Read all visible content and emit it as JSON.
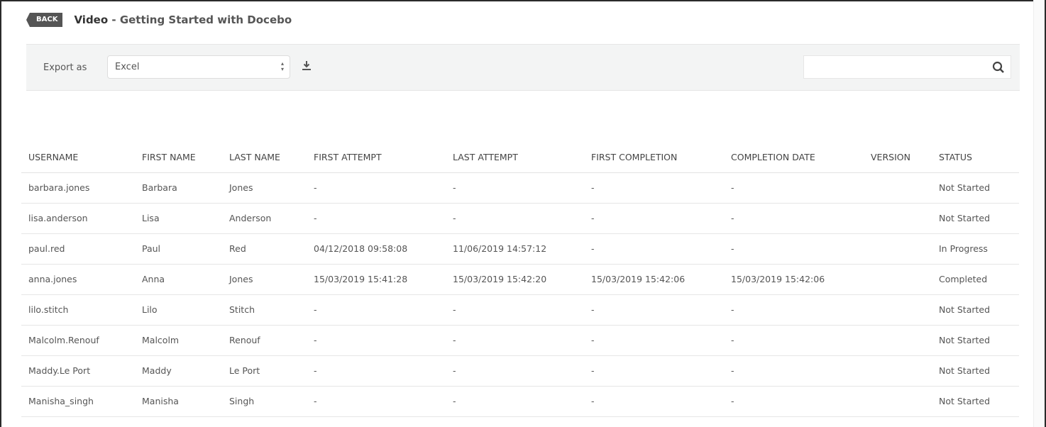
{
  "header": {
    "back_label": "BACK",
    "title_bold": "Video",
    "title_rest": " - Getting Started with Docebo"
  },
  "toolbar": {
    "export_label": "Export as",
    "export_format": "Excel",
    "download_icon": "download-icon",
    "search_placeholder": "",
    "search_icon": "search-icon"
  },
  "table": {
    "columns": [
      "USERNAME",
      "FIRST NAME",
      "LAST NAME",
      "FIRST ATTEMPT",
      "LAST ATTEMPT",
      "FIRST COMPLETION",
      "COMPLETION DATE",
      "VERSION",
      "STATUS"
    ],
    "rows": [
      [
        "barbara.jones",
        "Barbara",
        "Jones",
        "-",
        "-",
        "-",
        "-",
        "",
        "Not Started"
      ],
      [
        "lisa.anderson",
        "Lisa",
        "Anderson",
        "-",
        "-",
        "-",
        "-",
        "",
        "Not Started"
      ],
      [
        "paul.red",
        "Paul",
        "Red",
        "04/12/2018 09:58:08",
        "11/06/2019 14:57:12",
        "-",
        "-",
        "",
        "In Progress"
      ],
      [
        "anna.jones",
        "Anna",
        "Jones",
        "15/03/2019 15:41:28",
        "15/03/2019 15:42:20",
        "15/03/2019 15:42:06",
        "15/03/2019 15:42:06",
        "",
        "Completed"
      ],
      [
        "lilo.stitch",
        "Lilo",
        "Stitch",
        "-",
        "-",
        "-",
        "-",
        "",
        "Not Started"
      ],
      [
        "Malcolm.Renouf",
        "Malcolm",
        "Renouf",
        "-",
        "-",
        "-",
        "-",
        "",
        "Not Started"
      ],
      [
        "Maddy.Le Port",
        "Maddy",
        "Le Port",
        "-",
        "-",
        "-",
        "-",
        "",
        "Not Started"
      ],
      [
        "Manisha_singh",
        "Manisha",
        "Singh",
        "-",
        "-",
        "-",
        "-",
        "",
        "Not Started"
      ]
    ]
  }
}
